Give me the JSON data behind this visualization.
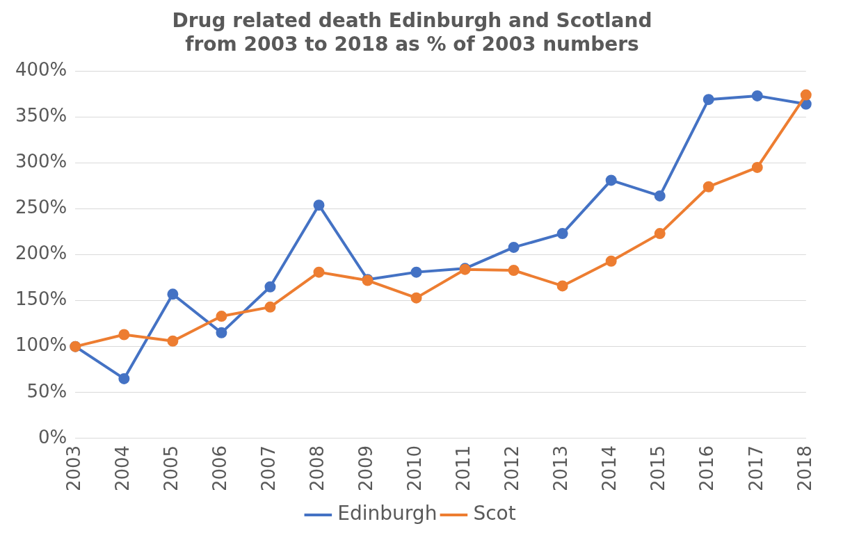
{
  "chart_data": {
    "type": "line",
    "title": "Drug related death Edinburgh and Scotland\nfrom 2003 to 2018 as % of 2003 numbers",
    "categories": [
      "2003",
      "2004",
      "2005",
      "2006",
      "2007",
      "2008",
      "2009",
      "2010",
      "2011",
      "2012",
      "2013",
      "2014",
      "2015",
      "2016",
      "2017",
      "2018"
    ],
    "series": [
      {
        "name": "Edinburgh",
        "color": "#4472c4",
        "values": [
          100,
          65,
          157,
          115,
          165,
          254,
          173,
          181,
          185,
          208,
          223,
          281,
          264,
          369,
          373,
          364
        ]
      },
      {
        "name": "Scot",
        "color": "#ed7d31",
        "values": [
          100,
          113,
          106,
          133,
          143,
          181,
          172,
          153,
          184,
          183,
          166,
          193,
          223,
          274,
          295,
          374
        ]
      }
    ],
    "ylim": [
      0,
      400
    ],
    "yticks": [
      {
        "value": 0,
        "label": "0%"
      },
      {
        "value": 50,
        "label": "50%"
      },
      {
        "value": 100,
        "label": "100%"
      },
      {
        "value": 150,
        "label": "150%"
      },
      {
        "value": 200,
        "label": "200%"
      },
      {
        "value": 250,
        "label": "250%"
      },
      {
        "value": 300,
        "label": "300%"
      },
      {
        "value": 350,
        "label": "350%"
      },
      {
        "value": 400,
        "label": "400%"
      }
    ],
    "grid": "y",
    "legend": "bottom",
    "marker": "circle",
    "line_style": "solid"
  }
}
